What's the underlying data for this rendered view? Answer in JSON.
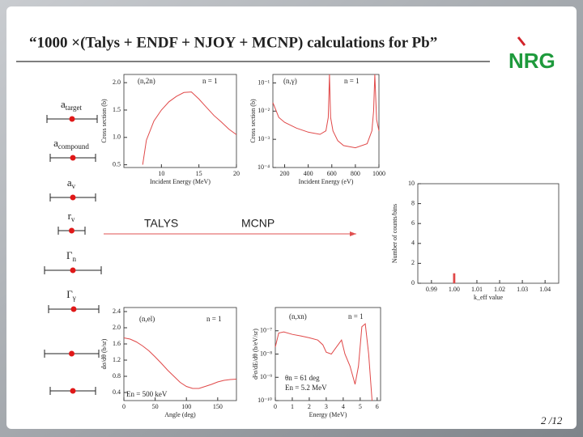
{
  "title": "“1000 ×(Talys + ENDF + NJOY + MCNP) calculations for Pb”",
  "logo": "NRG",
  "page_number": "2 /12",
  "flow": [
    "TALYS",
    "MCNP"
  ],
  "parameters": [
    {
      "symbol": "a",
      "subscript": "target"
    },
    {
      "symbol": "a",
      "subscript": "compound"
    },
    {
      "symbol": "a",
      "subscript": "v"
    },
    {
      "symbol": "r",
      "subscript": "v"
    },
    {
      "symbol": "Γ",
      "subscript": "n"
    },
    {
      "symbol": "Γ",
      "subscript": "γ"
    }
  ],
  "chart_data": [
    {
      "type": "line",
      "annotations": [
        "(n,2n)",
        "n = 1"
      ],
      "xlabel": "Incident Energy (MeV)",
      "ylabel": "Cross section (b)",
      "color": "#e04848",
      "x": [
        7.5,
        8,
        9,
        10,
        11,
        12,
        13,
        14,
        15,
        16,
        17,
        18,
        19,
        20
      ],
      "values": [
        0.5,
        0.95,
        1.3,
        1.5,
        1.65,
        1.75,
        1.82,
        1.83,
        1.7,
        1.55,
        1.4,
        1.28,
        1.15,
        1.05
      ],
      "xlim": [
        5,
        20
      ],
      "xticks": [
        10,
        15,
        20
      ],
      "ylim": [
        0.45,
        2.15
      ],
      "yticks": [
        0.5,
        {
          "value": 1.0,
          "label": "1.0"
        },
        1.5,
        {
          "value": 2.0,
          "label": "2.0"
        }
      ]
    },
    {
      "type": "line",
      "annotations": [
        "(n,γ)",
        "n = 1"
      ],
      "xlabel": "Incident Energy (eV)",
      "ylabel": "Cross section (b)",
      "color": "#e04848",
      "log_y": true,
      "x": [
        100,
        150,
        200,
        300,
        400,
        500,
        550,
        570,
        580,
        590,
        610,
        650,
        700,
        800,
        900,
        940,
        955,
        965,
        980,
        1000
      ],
      "values": [
        0.02,
        0.006,
        0.004,
        0.0025,
        0.0018,
        0.0015,
        0.002,
        0.006,
        0.2,
        0.006,
        0.002,
        0.0009,
        0.0006,
        0.0005,
        0.0007,
        0.002,
        0.01,
        0.2,
        0.005,
        0.002
      ],
      "xlim": [
        100,
        1000
      ],
      "xticks": [
        200,
        400,
        600,
        800,
        1000
      ],
      "ylim": [
        0.0001,
        0.2
      ],
      "yticks": [
        {
          "value": 0.0001,
          "label": "10⁻⁴"
        },
        {
          "value": 0.001,
          "label": "10⁻³"
        },
        {
          "value": 0.01,
          "label": "10⁻²"
        },
        {
          "value": 0.1,
          "label": "10⁻¹"
        }
      ]
    },
    {
      "type": "histogram",
      "annotations": [],
      "xlabel": "k_eff value",
      "ylabel": "Number of counts/bins",
      "color": "#e04848",
      "bins": [
        0.9995,
        1.0005
      ],
      "values": [
        1
      ],
      "xlim": [
        0.984,
        1.046
      ],
      "xticks": [
        0.99,
        {
          "value": 1.0,
          "label": "1.00"
        },
        1.01,
        1.02,
        1.03,
        1.04
      ],
      "ylim": [
        0,
        10
      ],
      "yticks": [
        0,
        2,
        4,
        6,
        8,
        10
      ]
    },
    {
      "type": "line",
      "annotations": [
        "(n,el)",
        "n = 1",
        "En = 500 keV"
      ],
      "xlabel": "Angle (deg)",
      "ylabel": "dσ/dθ (b/sr)",
      "color": "#e04848",
      "x": [
        0,
        10,
        20,
        30,
        40,
        50,
        60,
        70,
        80,
        90,
        100,
        110,
        120,
        130,
        140,
        150,
        160,
        170,
        180
      ],
      "values": [
        1.75,
        1.72,
        1.65,
        1.55,
        1.43,
        1.28,
        1.12,
        0.95,
        0.8,
        0.65,
        0.55,
        0.5,
        0.5,
        0.55,
        0.6,
        0.66,
        0.7,
        0.72,
        0.73
      ],
      "xlim": [
        0,
        180
      ],
      "xticks": [
        0,
        50,
        100,
        150
      ],
      "ylim": [
        0.2,
        2.5
      ],
      "yticks": [
        0.4,
        0.8,
        1.2,
        1.6,
        {
          "value": 2.0,
          "label": "2.0"
        },
        2.4
      ]
    },
    {
      "type": "line",
      "annotations": [
        "(n,xn)",
        "n = 1",
        "θn = 61 deg",
        "En = 5.2 MeV"
      ],
      "xlabel": "Energy (MeV)",
      "ylabel": "d²σ/dE/dθ (b/eV/sr)",
      "color": "#e04848",
      "log_y": true,
      "x": [
        0,
        0.2,
        0.5,
        1,
        1.5,
        2,
        2.5,
        2.8,
        3,
        3.3,
        3.6,
        3.9,
        4.1,
        4.4,
        4.7,
        4.9,
        5.1,
        5.3,
        5.5,
        5.7
      ],
      "values": [
        2e-08,
        8e-08,
        9e-08,
        7e-08,
        6e-08,
        5e-08,
        4e-08,
        2.5e-08,
        1.2e-08,
        1e-08,
        2e-08,
        4e-08,
        1e-08,
        3e-09,
        5e-10,
        3e-09,
        1.5e-07,
        2e-07,
        1e-08,
        1e-10
      ],
      "xlim": [
        0,
        6.2
      ],
      "xticks": [
        0,
        1,
        2,
        3,
        4,
        5,
        6
      ],
      "ylim": [
        1e-10,
        1e-06
      ],
      "yticks": [
        {
          "value": 1e-10,
          "label": "10⁻¹⁰"
        },
        {
          "value": 1e-09,
          "label": "10⁻⁹"
        },
        {
          "value": 1e-08,
          "label": "10⁻⁸"
        },
        {
          "value": 1e-07,
          "label": "10⁻⁷"
        }
      ]
    }
  ]
}
